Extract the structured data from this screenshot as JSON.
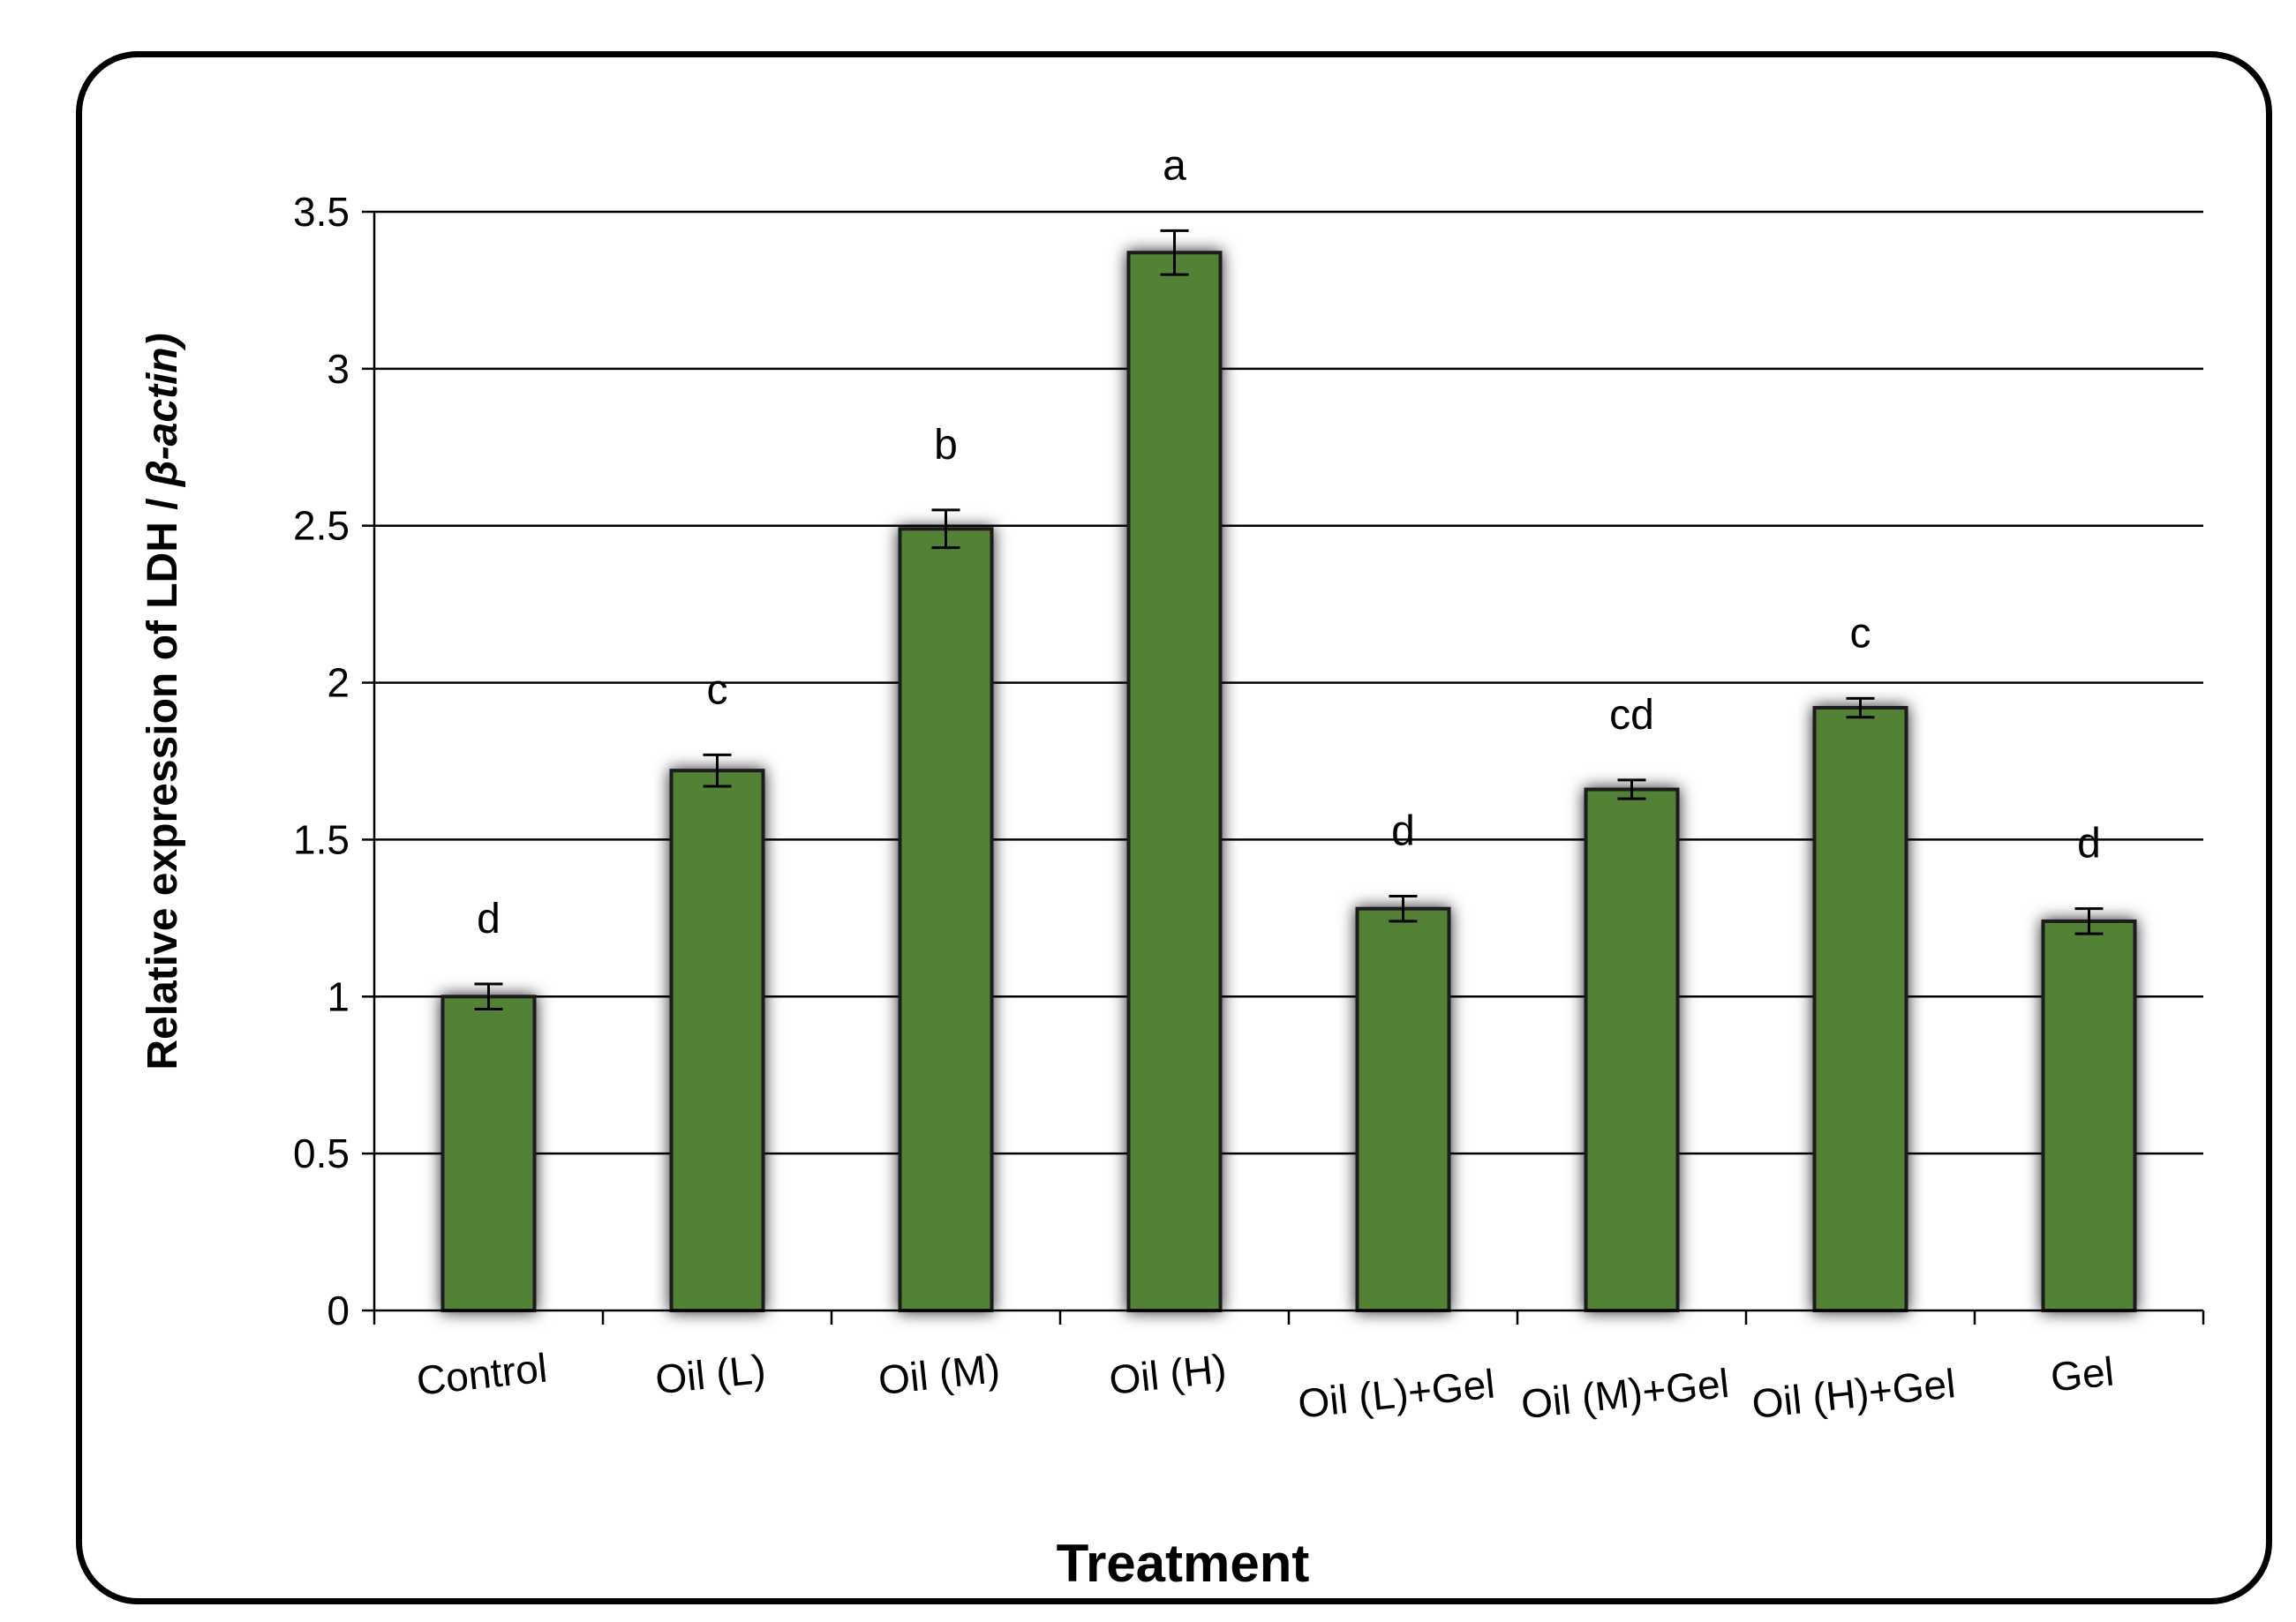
{
  "chart_data": {
    "type": "bar",
    "xlabel": "Treatment",
    "ylabel_prefix": "Relative expression of LDH / ",
    "ylabel_italic": "β-actin)",
    "ylim": [
      0,
      3.5
    ],
    "yticks": [
      0,
      0.5,
      1,
      1.5,
      2,
      2.5,
      3,
      3.5
    ],
    "ytick_labels": [
      "0",
      "0.5",
      "1",
      "1.5",
      "2",
      "2.5",
      "3",
      "3.5"
    ],
    "grid": true,
    "categories": [
      "Control",
      "Oil (L)",
      "Oil (M)",
      "Oil (H)",
      "Oil (L)+Gel",
      "Oil (M)+Gel",
      "Oil (H)+Gel",
      "Gel"
    ],
    "values": [
      1.0,
      1.72,
      2.49,
      3.37,
      1.28,
      1.66,
      1.92,
      1.24
    ],
    "errors": [
      0.04,
      0.05,
      0.06,
      0.07,
      0.04,
      0.03,
      0.03,
      0.04
    ],
    "significance": [
      "d",
      "c",
      "b",
      "a",
      "d",
      "cd",
      "c",
      "d"
    ],
    "bar_color": "#538135"
  }
}
